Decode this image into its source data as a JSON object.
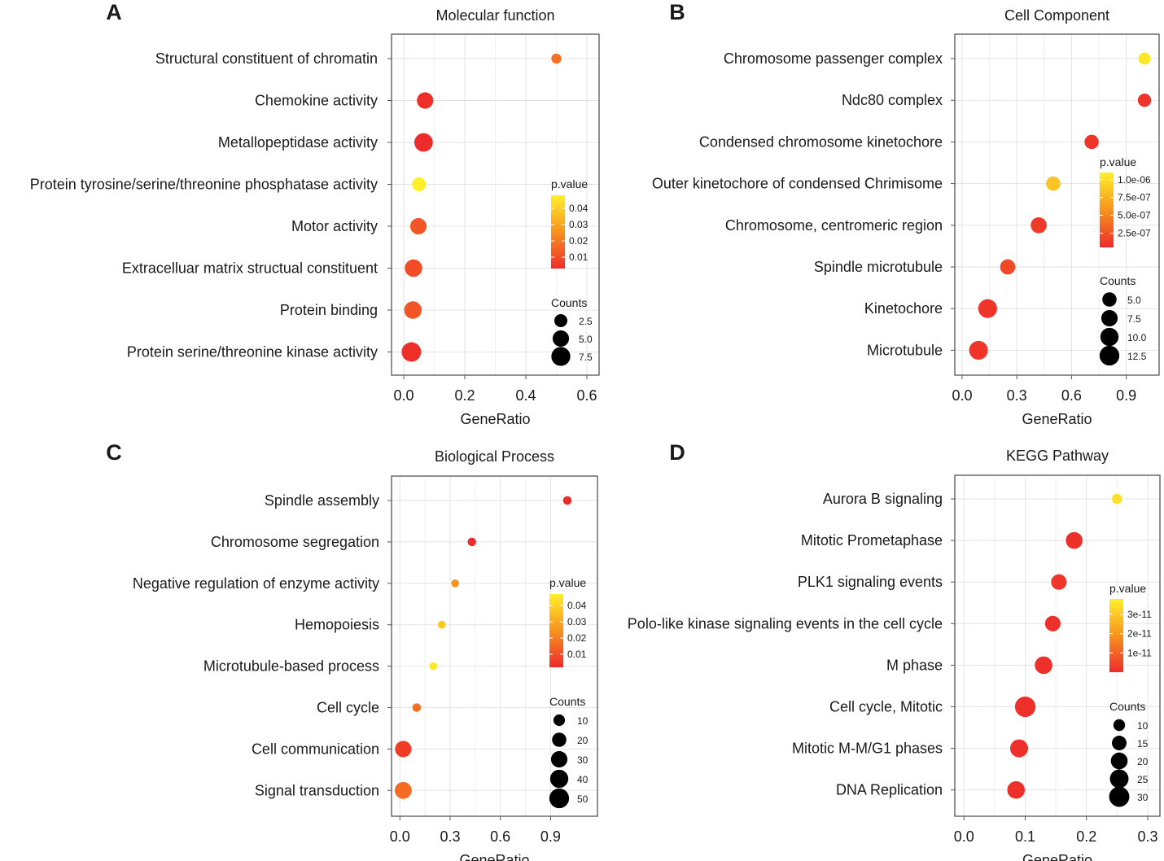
{
  "colors": {
    "low": "#ee2b2b",
    "mid": "#f7931e",
    "high": "#ffef2a",
    "grid": "#e3e3e3",
    "frame": "#555555"
  },
  "chart_data": [
    {
      "panel": "A",
      "type": "scatter",
      "title": "Molecular function",
      "xlabel": "GeneRatio",
      "xlim": [
        -0.04,
        0.64
      ],
      "xticks": [
        0.0,
        0.2,
        0.4,
        0.6
      ],
      "xtick_labels": [
        "0.0",
        "0.2",
        "0.4",
        "0.6"
      ],
      "categories": [
        "Structural constituent of chromatin",
        "Chemokine activity",
        "Metallopeptidase activity",
        "Protein tyrosine/serine/threonine phosphatase activity",
        "Motor activity",
        "Extracelluar matrix structual constituent",
        "Protein binding",
        "Protein serine/threonine kinase activity"
      ],
      "gene_ratio": [
        0.5,
        0.07,
        0.065,
        0.05,
        0.048,
        0.032,
        0.03,
        0.025
      ],
      "p_value": [
        0.018,
        0.004,
        0.002,
        0.048,
        0.012,
        0.01,
        0.012,
        0.004
      ],
      "counts": [
        1,
        5,
        7,
        3,
        5,
        6,
        6,
        8
      ],
      "pvalue_legend": {
        "title": "p.value",
        "ticks": [
          0.04,
          0.03,
          0.02,
          0.01
        ],
        "tick_labels": [
          "0.04",
          "0.03",
          "0.02",
          "0.01"
        ],
        "range": [
          0.003,
          0.048
        ]
      },
      "counts_legend": {
        "title": "Counts",
        "ticks": [
          2.5,
          5.0,
          7.5
        ],
        "tick_labels": [
          "2.5",
          "5.0",
          "7.5"
        ],
        "range": [
          0,
          10
        ]
      }
    },
    {
      "panel": "B",
      "type": "scatter",
      "title": "Cell Component",
      "xlabel": "GeneRatio",
      "xlim": [
        -0.04,
        1.08
      ],
      "xticks": [
        0.0,
        0.3,
        0.6,
        0.9
      ],
      "xtick_labels": [
        "0.0",
        "0.3",
        "0.6",
        "0.9"
      ],
      "categories": [
        "Chromosome passenger complex",
        "Ndc80 complex",
        "Condensed chromosome kinetochore",
        "Outer kinetochore of condensed Chrimisome",
        "Chromosome, centromeric region",
        "Spindle microtubule",
        "Kinetochore",
        "Microtubule"
      ],
      "gene_ratio": [
        1.0,
        1.0,
        0.71,
        0.5,
        0.42,
        0.25,
        0.14,
        0.09
      ],
      "p_value": [
        1.05e-06,
        1e-07,
        1e-07,
        8.5e-07,
        1.2e-07,
        2e-07,
        1e-07,
        1e-07
      ],
      "counts": [
        3,
        4,
        5,
        5,
        7,
        6,
        11,
        11
      ],
      "pvalue_legend": {
        "title": "p.value",
        "ticks": [
          1e-06,
          7.5e-07,
          5e-07,
          2.5e-07
        ],
        "tick_labels": [
          "1.0e-06",
          "7.5e-07",
          "5.0e-07",
          "2.5e-07"
        ],
        "range": [
          5e-08,
          1.1e-06
        ]
      },
      "counts_legend": {
        "title": "Counts",
        "ticks": [
          5.0,
          7.5,
          10.0,
          12.5
        ],
        "tick_labels": [
          "5.0",
          "7.5",
          "10.0",
          "12.5"
        ],
        "range": [
          0,
          15
        ]
      }
    },
    {
      "panel": "C",
      "type": "scatter",
      "title": "Biological Process",
      "xlabel": "GeneRatio",
      "xlim": [
        -0.05,
        1.18
      ],
      "xticks": [
        0.0,
        0.3,
        0.6,
        0.9
      ],
      "xtick_labels": [
        "0.0",
        "0.3",
        "0.6",
        "0.9"
      ],
      "categories": [
        "Spindle assembly",
        "Chromosome segregation",
        "Negative regulation of enzyme activity",
        "Hemopoiesis",
        "Microtubule-based process",
        "Cell cycle",
        "Cell communication",
        "Signal transduction"
      ],
      "gene_ratio": [
        1.0,
        0.43,
        0.33,
        0.25,
        0.2,
        0.1,
        0.02,
        0.02
      ],
      "p_value": [
        0.002,
        0.001,
        0.025,
        0.038,
        0.045,
        0.017,
        0.006,
        0.016
      ],
      "counts": [
        3,
        3,
        2,
        2,
        2,
        3,
        30,
        33
      ],
      "pvalue_legend": {
        "title": "p.value",
        "ticks": [
          0.04,
          0.03,
          0.02,
          0.01
        ],
        "tick_labels": [
          "0.04",
          "0.03",
          "0.02",
          "0.01"
        ],
        "range": [
          0.002,
          0.047
        ]
      },
      "counts_legend": {
        "title": "Counts",
        "ticks": [
          10,
          20,
          30,
          40,
          50
        ],
        "tick_labels": [
          "10",
          "20",
          "30",
          "40",
          "50"
        ],
        "range": [
          0,
          60
        ]
      }
    },
    {
      "panel": "D",
      "type": "scatter",
      "title": "KEGG Pathway",
      "xlabel": "GeneRatio",
      "xlim": [
        -0.015,
        0.32
      ],
      "xticks": [
        0.0,
        0.1,
        0.2,
        0.3
      ],
      "xtick_labels": [
        "0.0",
        "0.1",
        "0.2",
        "0.3"
      ],
      "categories": [
        "Aurora B signaling",
        "Mitotic Prometaphase",
        "PLK1 signaling events",
        "Polo-like kinase signaling events in the cell cycle",
        "M phase",
        "Cell cycle, Mitotic",
        "Mitotic M-M/G1 phases",
        "DNA Replication"
      ],
      "gene_ratio": [
        0.25,
        0.18,
        0.155,
        0.145,
        0.13,
        0.1,
        0.09,
        0.085
      ],
      "p_value": [
        3.5e-11,
        1e-12,
        2e-12,
        1e-12,
        1e-12,
        1e-12,
        1e-12,
        1e-12
      ],
      "counts": [
        8,
        20,
        17,
        17,
        22,
        31,
        23,
        22
      ],
      "pvalue_legend": {
        "title": "p.value",
        "ticks": [
          3e-11,
          2e-11,
          1e-11
        ],
        "tick_labels": [
          "3e-11",
          "2e-11",
          "1e-11"
        ],
        "range": [
          0,
          3.8e-11
        ]
      },
      "counts_legend": {
        "title": "Counts",
        "ticks": [
          10,
          15,
          20,
          25,
          30
        ],
        "tick_labels": [
          "10",
          "15",
          "20",
          "25",
          "30"
        ],
        "range": [
          5,
          33
        ]
      }
    }
  ]
}
